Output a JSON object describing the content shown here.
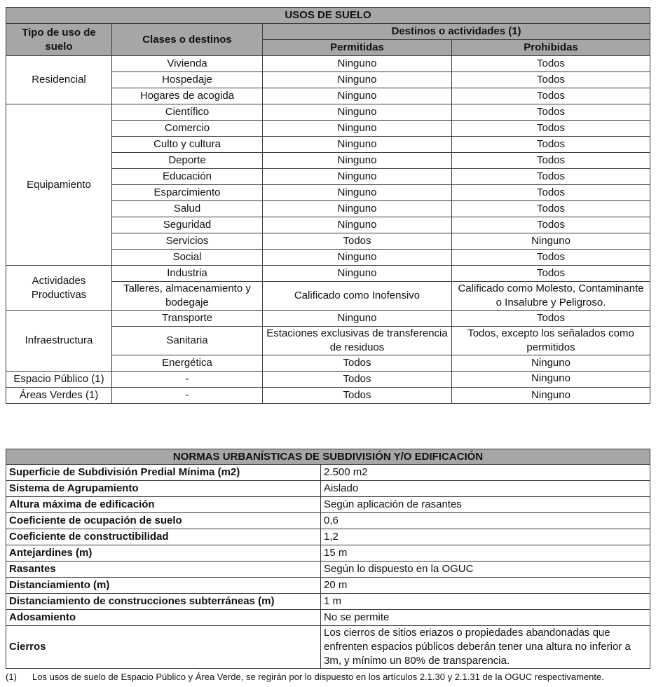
{
  "usos": {
    "title": "USOS DE SUELO",
    "headers": {
      "tipo": "Tipo de uso de suelo",
      "clases": "Clases o destinos",
      "destinos": "Destinos o actividades (1)",
      "permitidas": "Permitidas",
      "prohibidas": "Prohibidas"
    },
    "groups": [
      {
        "tipo": "Residencial",
        "rows": [
          {
            "clase": "Vivienda",
            "permitidas": "Ninguno",
            "prohibidas": "Todos"
          },
          {
            "clase": "Hospedaje",
            "permitidas": "Ninguno",
            "prohibidas": "Todos"
          },
          {
            "clase": "Hogares de acogida",
            "permitidas": "Ninguno",
            "prohibidas": "Todos"
          }
        ]
      },
      {
        "tipo": "Equipamiento",
        "rows": [
          {
            "clase": "Científico",
            "permitidas": "Ninguno",
            "prohibidas": "Todos"
          },
          {
            "clase": "Comercio",
            "permitidas": "Ninguno",
            "prohibidas": "Todos"
          },
          {
            "clase": "Culto y cultura",
            "permitidas": "Ninguno",
            "prohibidas": "Todos"
          },
          {
            "clase": "Deporte",
            "permitidas": "Ninguno",
            "prohibidas": "Todos"
          },
          {
            "clase": "Educación",
            "permitidas": "Ninguno",
            "prohibidas": "Todos"
          },
          {
            "clase": "Esparcimiento",
            "permitidas": "Ninguno",
            "prohibidas": "Todos"
          },
          {
            "clase": "Salud",
            "permitidas": "Ninguno",
            "prohibidas": "Todos"
          },
          {
            "clase": "Seguridad",
            "permitidas": "Ninguno",
            "prohibidas": "Todos"
          },
          {
            "clase": "Servicios",
            "permitidas": "Todos",
            "prohibidas": "Ninguno"
          },
          {
            "clase": "Social",
            "permitidas": "Ninguno",
            "prohibidas": "Todos"
          }
        ]
      },
      {
        "tipo": "Actividades Productivas",
        "rows": [
          {
            "clase": "Industria",
            "permitidas": "Ninguno",
            "prohibidas": "Todos"
          },
          {
            "clase": "Talleres, almacenamiento y bodegaje",
            "permitidas": "Calificado como Inofensivo",
            "prohibidas": "Calificado como Molesto, Contaminante o Insalubre y Peligroso."
          }
        ]
      },
      {
        "tipo": "Infraestructura",
        "rows": [
          {
            "clase": "Transporte",
            "permitidas": "Ninguno",
            "prohibidas": "Todos"
          },
          {
            "clase": "Sanitaria",
            "permitidas": "Estaciones exclusivas de transferencia de residuos",
            "prohibidas": "Todos, excepto los señalados como permitidos"
          },
          {
            "clase": "Energética",
            "permitidas": "Todos",
            "prohibidas": "Ninguno"
          }
        ]
      },
      {
        "tipo": "Espacio Público (1)",
        "rows": [
          {
            "clase": "-",
            "permitidas": "Todos",
            "prohibidas": "Ninguno"
          }
        ]
      },
      {
        "tipo": "Áreas Verdes (1)",
        "rows": [
          {
            "clase": "-",
            "permitidas": "Todos",
            "prohibidas": "Ninguno"
          }
        ]
      }
    ]
  },
  "normas": {
    "title": "NORMAS URBANÍSTICAS DE SUBDIVISIÓN Y/O EDIFICACIÓN",
    "rows": [
      {
        "k": "Superficie de Subdivisión Predial Mínima (m2)",
        "v": "2.500 m2"
      },
      {
        "k": "Sistema de Agrupamiento",
        "v": "Aislado"
      },
      {
        "k": "Altura máxima de edificación",
        "v": "Según aplicación de rasantes"
      },
      {
        "k": "Coeficiente de ocupación de suelo",
        "v": "0,6"
      },
      {
        "k": "Coeficiente de constructibilidad",
        "v": "1,2"
      },
      {
        "k": "Antejardines (m)",
        "v": "15 m"
      },
      {
        "k": "Rasantes",
        "v": "Según lo dispuesto en la OGUC"
      },
      {
        "k": "Distanciamiento (m)",
        "v": "20 m"
      },
      {
        "k": "Distanciamiento de construcciones subterráneas (m)",
        "v": "1 m"
      },
      {
        "k": "Adosamiento",
        "v": "No se permite"
      },
      {
        "k": "Cierros",
        "v": "Los cierros de sitios eriazos o propiedades abandonadas que enfrenten espacios públicos deberán tener una altura no inferior a 3m, y mínimo un 80% de transparencia."
      }
    ]
  },
  "footnote": {
    "marker": "(1)",
    "text": "Los usos de suelo de Espacio Público y Área Verde, se regirán por lo dispuesto en los artículos 2.1.30 y 2.1.31 de la OGUC respectivamente."
  }
}
